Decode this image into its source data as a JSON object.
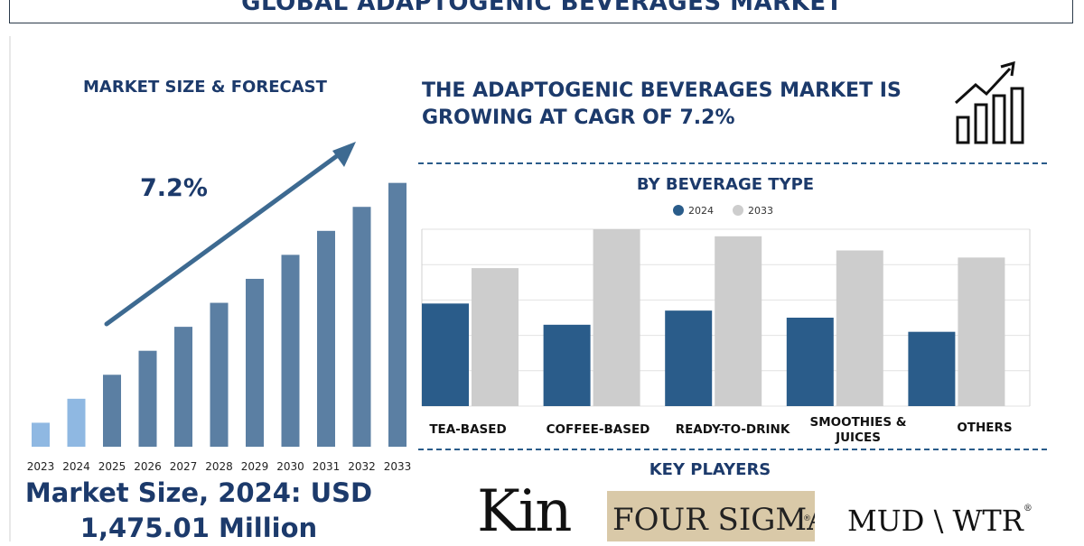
{
  "header": {
    "title": "GLOBAL ADAPTOGENIC BEVERAGES MARKET"
  },
  "left_panel": {
    "heading": "MARKET SIZE & FORECAST",
    "cagr_label": "7.2%",
    "market_size_line1": "Market Size, 2024: USD",
    "market_size_line2": "1,475.01 Million"
  },
  "right_panel": {
    "headline_line1": "THE ADAPTOGENIC BEVERAGES MARKET IS",
    "headline_line2": "GROWING AT CAGR OF 7.2%",
    "growth_icon": "growth-chart-icon"
  },
  "key_players": {
    "heading": "KEY PLAYERS",
    "logos": [
      "Kin",
      "FOUR SIGMATIC",
      "MUD\\WTR"
    ]
  },
  "chart_data": [
    {
      "type": "bar",
      "title": "",
      "categories": [
        "2023",
        "2024",
        "2025",
        "2026",
        "2027",
        "2028",
        "2029",
        "2030",
        "2031",
        "2032",
        "2033"
      ],
      "values": [
        1.0,
        2.0,
        3.0,
        4.0,
        5.0,
        6.0,
        7.0,
        8.0,
        9.0,
        10.0,
        11.0
      ],
      "colors": [
        "#8fb8e2",
        "#8fb8e2",
        "#5b7fa3",
        "#5b7fa3",
        "#5b7fa3",
        "#5b7fa3",
        "#5b7fa3",
        "#5b7fa3",
        "#5b7fa3",
        "#5b7fa3",
        "#5b7fa3"
      ],
      "ylim": [
        0,
        11.1
      ],
      "grid": false,
      "trend_arrow": true
    },
    {
      "type": "bar",
      "title": "BY BEVERAGE TYPE",
      "categories": [
        "TEA-BASED",
        "COFFEE-BASED",
        "READY-TO-DRINK",
        "SMOOTHIES & JUICES",
        "OTHERS"
      ],
      "series": [
        {
          "name": "2024",
          "values": [
            2.9,
            2.3,
            2.7,
            2.5,
            2.1
          ],
          "color": "#2a5c8a"
        },
        {
          "name": "2033",
          "values": [
            3.9,
            5.0,
            4.8,
            4.4,
            4.2
          ],
          "color": "#cdcdcd"
        }
      ],
      "ylim": [
        0,
        5.0
      ],
      "grid": true,
      "legend": "top-center"
    }
  ]
}
